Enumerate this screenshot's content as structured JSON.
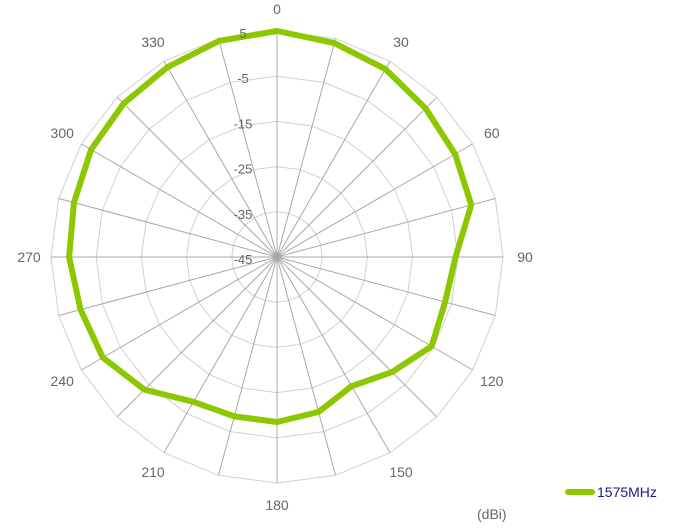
{
  "chart_data": {
    "type": "polar-line",
    "unit_label": "(dBi)",
    "angle_ticks": [
      0,
      30,
      60,
      90,
      120,
      150,
      180,
      210,
      240,
      270,
      300,
      330
    ],
    "angle_step": 15,
    "radial_ticks": [
      5,
      -5,
      -15,
      -25,
      -35,
      -45
    ],
    "rlim": [
      -45,
      5
    ],
    "series": [
      {
        "name": "1575MHz",
        "color": "#8cc700",
        "angles": [
          0,
          15,
          30,
          45,
          60,
          75,
          90,
          105,
          120,
          135,
          150,
          165,
          180,
          195,
          210,
          225,
          240,
          255,
          270,
          285,
          300,
          315,
          330,
          345
        ],
        "values": [
          5,
          4,
          3,
          1.5,
          0.5,
          -0.5,
          -5.5,
          -6.5,
          -5.5,
          -9,
          -12,
          -9.5,
          -8.5,
          -8.5,
          -8,
          -3.5,
          -0.5,
          0,
          1,
          1.5,
          2.5,
          3,
          3.5,
          4.5
        ]
      }
    ]
  }
}
